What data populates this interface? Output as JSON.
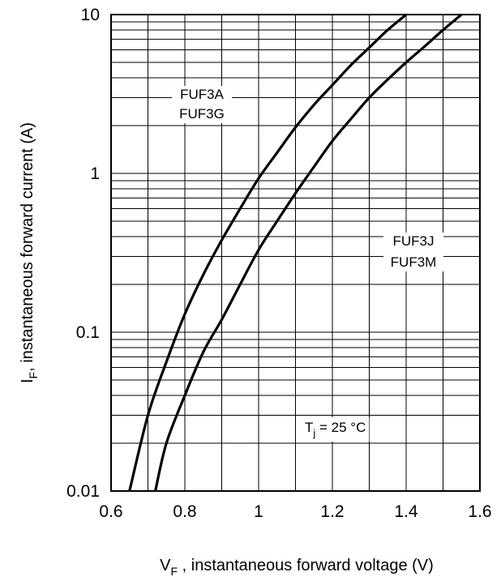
{
  "chart_data": {
    "type": "line",
    "title": "",
    "x_scale": "linear",
    "y_scale": "log",
    "xlim": [
      0.6,
      1.6
    ],
    "ylim": [
      0.01,
      10
    ],
    "x_ticks": [
      "0.6",
      "0.8",
      "1",
      "1.2",
      "1.4",
      "1.6"
    ],
    "y_ticks": [
      "0.01",
      "0.1",
      "1",
      "10"
    ],
    "grid": true,
    "xlabel": {
      "main": "V",
      "sub": "F",
      "rest": " , instantaneous forward voltage (V)"
    },
    "ylabel": {
      "main": "I",
      "sub": "F",
      "rest": ", instantaneous forward current  (A)"
    },
    "series": [
      {
        "labels": [
          "FUF3A",
          "FUF3G"
        ],
        "x": [
          0.65,
          0.7,
          0.75,
          0.8,
          0.85,
          0.9,
          0.95,
          1.0,
          1.05,
          1.1,
          1.15,
          1.2,
          1.25,
          1.3,
          1.35,
          1.4
        ],
        "y": [
          0.01,
          0.03,
          0.065,
          0.13,
          0.23,
          0.38,
          0.6,
          0.93,
          1.35,
          1.95,
          2.7,
          3.6,
          4.8,
          6.2,
          8.0,
          10.0
        ]
      },
      {
        "labels": [
          "FUF3J",
          "FUF3M"
        ],
        "x": [
          0.72,
          0.75,
          0.8,
          0.85,
          0.9,
          0.95,
          1.0,
          1.05,
          1.1,
          1.15,
          1.2,
          1.25,
          1.3,
          1.35,
          1.4,
          1.45,
          1.5,
          1.55
        ],
        "y": [
          0.01,
          0.02,
          0.04,
          0.075,
          0.12,
          0.2,
          0.33,
          0.5,
          0.75,
          1.1,
          1.6,
          2.2,
          3.0,
          3.9,
          5.0,
          6.3,
          8.0,
          10.0
        ]
      }
    ],
    "annotation": {
      "symbol": "T",
      "sub": "j",
      "text": "  = 25 °C"
    }
  }
}
